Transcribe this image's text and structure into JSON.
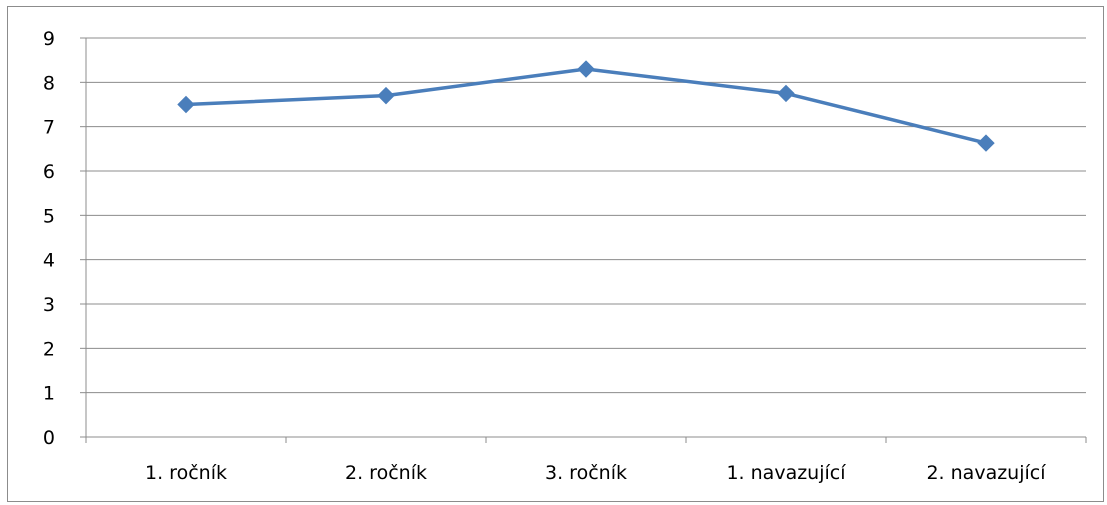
{
  "chart_data": {
    "type": "line",
    "categories": [
      "1. ročník",
      "2. ročník",
      "3. ročník",
      "1. navazující",
      "2. navazující"
    ],
    "series": [
      {
        "values": [
          7.5,
          7.7,
          8.3,
          7.75,
          6.63
        ],
        "color": "#4a7ebb",
        "marker": "diamond"
      }
    ],
    "ylim": [
      0,
      9
    ],
    "yticks": [
      0,
      1,
      2,
      3,
      4,
      5,
      6,
      7,
      8,
      9
    ],
    "grid": true,
    "legend": "none",
    "title": "",
    "xlabel": "",
    "ylabel": ""
  }
}
